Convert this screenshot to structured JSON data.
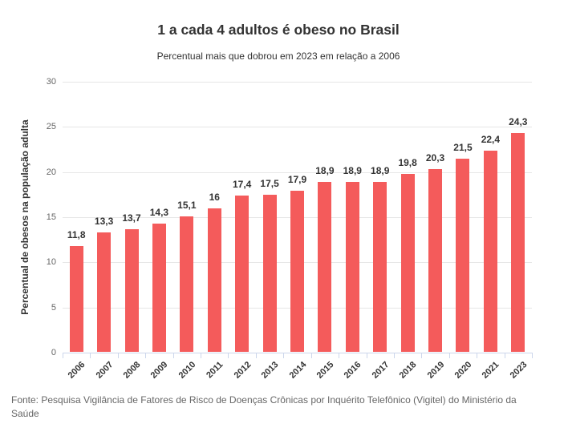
{
  "title": "1 a cada 4 adultos é obeso no Brasil",
  "subtitle": "Percentual mais que dobrou em 2023 em relação a 2006",
  "source": "Fonte: Pesquisa Vigilância de Fatores de Risco de Doenças Crônicas por Inquérito Telefônico (Vigitel) do Ministério da Saúde",
  "colors": {
    "bar": "#f45b5b",
    "gridline": "#e6e6e6",
    "axis_line": "#ccd6eb",
    "y_tick_label": "#666666",
    "dark_text": "#333333",
    "source_text": "#666666"
  },
  "chart_data": {
    "type": "bar",
    "title": "1 a cada 4 adultos é obeso no Brasil",
    "subtitle": "Percentual mais que dobrou em 2023 em relação a 2006",
    "categories": [
      "2006",
      "2007",
      "2008",
      "2009",
      "2010",
      "2011",
      "2012",
      "2013",
      "2014",
      "2015",
      "2016",
      "2017",
      "2018",
      "2019",
      "2020",
      "2021",
      "2023"
    ],
    "values": [
      11.8,
      13.3,
      13.7,
      14.3,
      15.1,
      16,
      17.4,
      17.5,
      17.9,
      18.9,
      18.9,
      18.9,
      19.8,
      20.3,
      21.5,
      22.4,
      24.3
    ],
    "value_labels": [
      "11,8",
      "13,3",
      "13,7",
      "14,3",
      "15,1",
      "16",
      "17,4",
      "17,5",
      "17,9",
      "18,9",
      "18,9",
      "18,9",
      "19,8",
      "20,3",
      "21,5",
      "22,4",
      "24,3"
    ],
    "xlabel": "",
    "ylabel": "Percentual de obesos na população adulta",
    "ylim": [
      0,
      30
    ],
    "yticks": [
      0,
      5,
      10,
      15,
      20,
      25,
      30
    ],
    "grid": true,
    "legend": "none"
  }
}
